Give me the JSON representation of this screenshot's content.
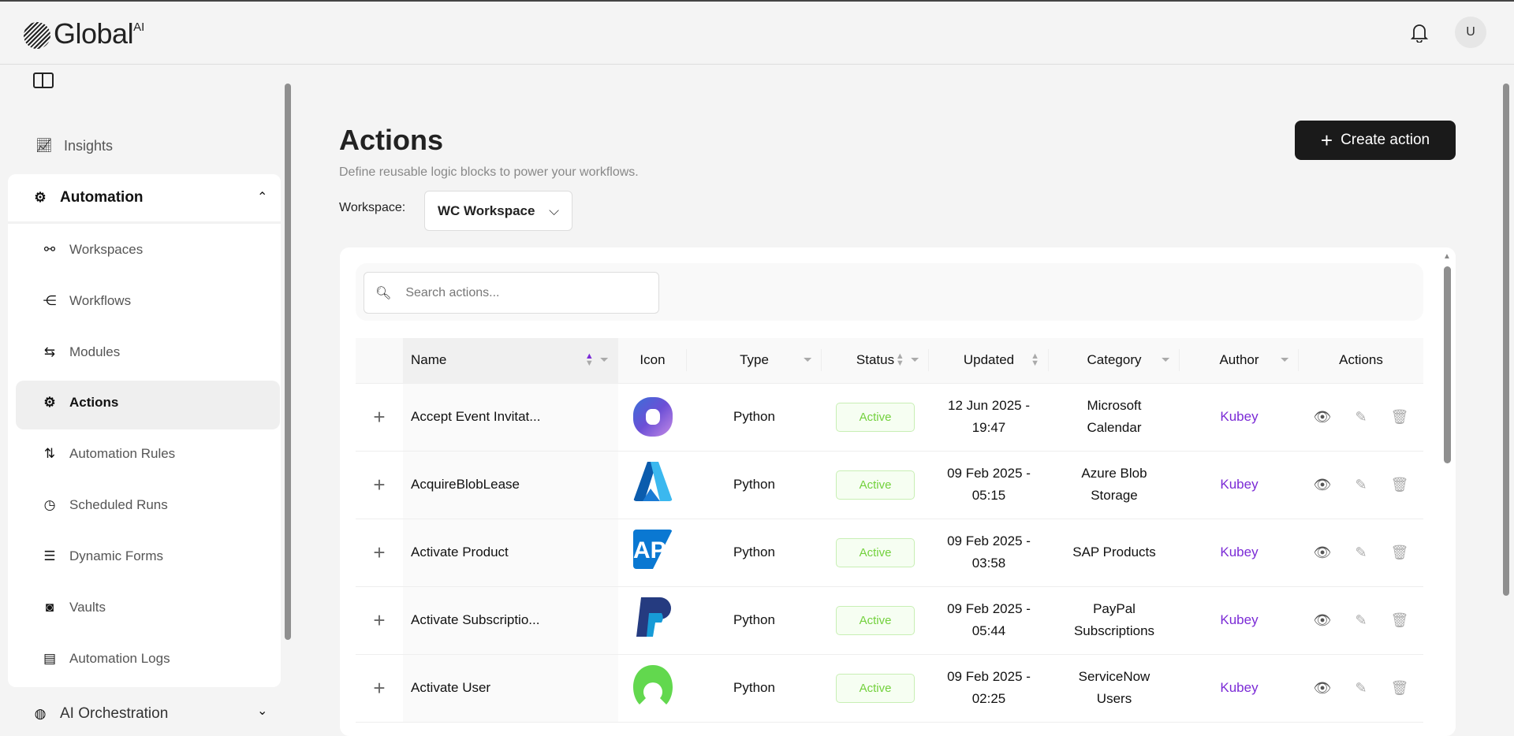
{
  "app": {
    "logo_text": "Global",
    "logo_sup": "AI",
    "avatar_initial": "U"
  },
  "sidebar": {
    "insights": "Insights",
    "automation": "Automation",
    "items": [
      {
        "label": "Workspaces",
        "icon": "workspaces-icon",
        "glyph": "⚯"
      },
      {
        "label": "Workflows",
        "icon": "workflows-icon",
        "glyph": "⋲"
      },
      {
        "label": "Modules",
        "icon": "modules-icon",
        "glyph": "⇆"
      },
      {
        "label": "Actions",
        "icon": "actions-icon",
        "glyph": "⚙"
      },
      {
        "label": "Automation Rules",
        "icon": "automation-rules-icon",
        "glyph": "⇅"
      },
      {
        "label": "Scheduled Runs",
        "icon": "timer-icon",
        "glyph": "◷"
      },
      {
        "label": "Dynamic Forms",
        "icon": "form-icon",
        "glyph": "☰"
      },
      {
        "label": "Vaults",
        "icon": "vault-icon",
        "glyph": "◙"
      },
      {
        "label": "Automation Logs",
        "icon": "clipboard-icon",
        "glyph": "▤"
      }
    ],
    "active": "Actions",
    "ai_orchestration": "AI Orchestration"
  },
  "page": {
    "title": "Actions",
    "subtitle": "Define reusable logic blocks to power your workflows.",
    "create_label": "Create action",
    "workspace_label": "Workspace:",
    "workspace_value": "WC Workspace",
    "search_placeholder": "Search actions..."
  },
  "table": {
    "columns": [
      "Name",
      "Icon",
      "Type",
      "Status",
      "Updated",
      "Category",
      "Author",
      "Actions"
    ],
    "rows": [
      {
        "name": "Accept Event Invitat...",
        "icon": "microsoft-copilot-logo",
        "type": "Python",
        "status": "Active",
        "updated1": "12 Jun 2025 -",
        "updated2": "19:47",
        "category1": "Microsoft",
        "category2": "Calendar",
        "author": "Kubey"
      },
      {
        "name": "AcquireBlobLease",
        "icon": "azure-logo",
        "type": "Python",
        "status": "Active",
        "updated1": "09 Feb 2025 -",
        "updated2": "05:15",
        "category1": "Azure Blob",
        "category2": "Storage",
        "author": "Kubey"
      },
      {
        "name": "Activate Product",
        "icon": "sap-logo",
        "type": "Python",
        "status": "Active",
        "updated1": "09 Feb 2025 -",
        "updated2": "03:58",
        "category1": "SAP Products",
        "category2": "",
        "author": "Kubey"
      },
      {
        "name": "Activate Subscriptio...",
        "icon": "paypal-logo",
        "type": "Python",
        "status": "Active",
        "updated1": "09 Feb 2025 -",
        "updated2": "05:44",
        "category1": "PayPal",
        "category2": "Subscriptions",
        "author": "Kubey"
      },
      {
        "name": "Activate User",
        "icon": "servicenow-logo",
        "type": "Python",
        "status": "Active",
        "updated1": "09 Feb 2025 -",
        "updated2": "02:25",
        "category1": "ServiceNow",
        "category2": "Users",
        "author": "Kubey"
      }
    ]
  },
  "colors": {
    "accent": "#7b2bd6",
    "active_green": "#73d13d",
    "button": "#1a1a1a"
  }
}
